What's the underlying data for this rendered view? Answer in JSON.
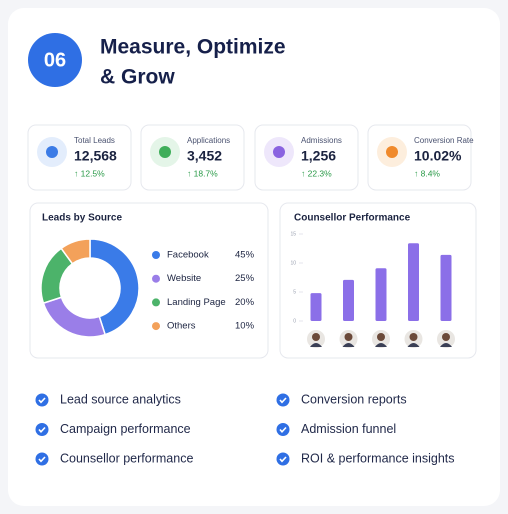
{
  "header": {
    "number": "06",
    "title": [
      "Measure, Optimize",
      "& Grow"
    ]
  },
  "kpis": [
    {
      "label": "Total Leads",
      "value": "12,568",
      "change": "↑ 12.5%",
      "color": "#3b7be6",
      "bg": "#e3edfc"
    },
    {
      "label": "Applications",
      "value": "3,452",
      "change": "↑ 18.7%",
      "color": "#3fae5a",
      "bg": "#e4f5e8"
    },
    {
      "label": "Admissions",
      "value": "1,256",
      "change": "↑ 22.3%",
      "color": "#8a63e0",
      "bg": "#eee7fb"
    },
    {
      "label": "Conversion Rate",
      "value": "10.02%",
      "change": "↑ 8.4%",
      "color": "#f08a2c",
      "bg": "#fdeedd"
    }
  ],
  "leads_by_source": {
    "type": "pie",
    "title": "Leads by Source",
    "categories": [
      "Facebook",
      "Website",
      "Landing Page",
      "Others"
    ],
    "values": [
      45,
      25,
      20,
      10
    ],
    "value_labels": [
      "45%",
      "25%",
      "20%",
      "10%"
    ],
    "colors": [
      "#3a7be8",
      "#9a7ee8",
      "#4cb36a",
      "#f3a15a"
    ]
  },
  "counsellor_performance": {
    "type": "bar",
    "title": "Counsellor Performance",
    "values": [
      4.8,
      7.1,
      9.1,
      13.4,
      11.4
    ],
    "color": "#8b6fe8",
    "ylim": [
      0,
      15
    ],
    "yticks": [
      0,
      5,
      10,
      15
    ]
  },
  "features": [
    [
      "Lead source analytics",
      "Campaign performance",
      "Counsellor performance"
    ],
    [
      "Conversion reports",
      "Admission funnel",
      "ROI & performance insights"
    ]
  ]
}
